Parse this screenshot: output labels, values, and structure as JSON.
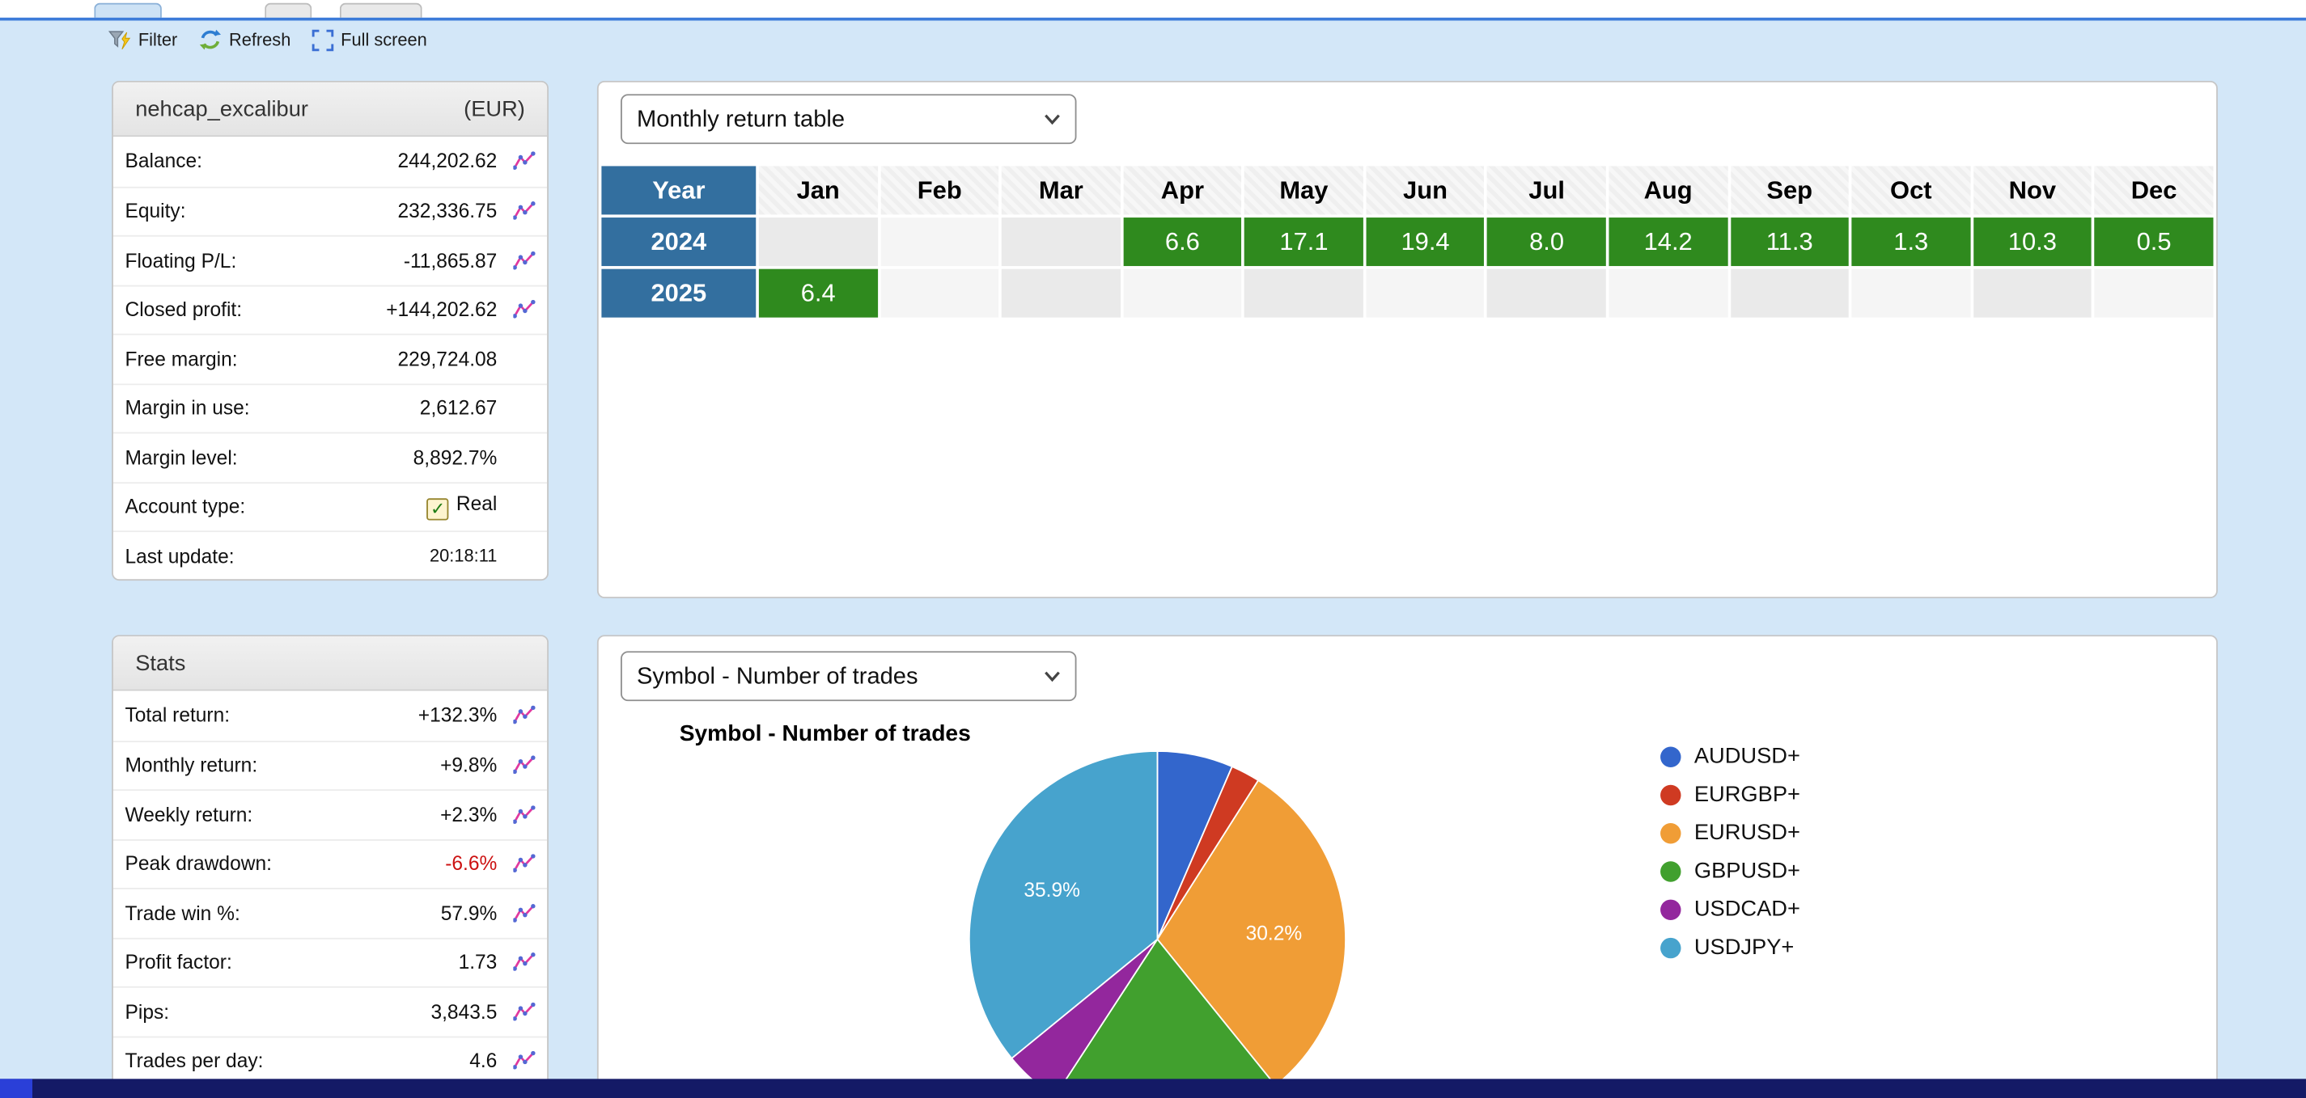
{
  "toolbar": {
    "filter": "Filter",
    "refresh": "Refresh",
    "fullscreen": "Full screen"
  },
  "account": {
    "title": "nehcap_excalibur",
    "currency": "(EUR)",
    "rows": [
      {
        "label": "Balance:",
        "value": "244,202.62",
        "chart": true
      },
      {
        "label": "Equity:",
        "value": "232,336.75",
        "chart": true
      },
      {
        "label": "Floating P/L:",
        "value": "-11,865.87",
        "chart": true
      },
      {
        "label": "Closed profit:",
        "value": "+144,202.62",
        "chart": true
      },
      {
        "label": "Free margin:",
        "value": "229,724.08",
        "chart": false
      },
      {
        "label": "Margin in use:",
        "value": "2,612.67",
        "chart": false
      },
      {
        "label": "Margin level:",
        "value": "8,892.7%",
        "chart": false
      },
      {
        "label": "Account type:",
        "value": "Real",
        "chart": false,
        "checkbox": true
      },
      {
        "label": "Last update:",
        "value": "20:18:11",
        "chart": false,
        "small": true
      }
    ]
  },
  "stats": {
    "title": "Stats",
    "rows": [
      {
        "label": "Total return:",
        "value": "+132.3%",
        "chart": true
      },
      {
        "label": "Monthly return:",
        "value": "+9.8%",
        "chart": true
      },
      {
        "label": "Weekly return:",
        "value": "+2.3%",
        "chart": true
      },
      {
        "label": "Peak drawdown:",
        "value": "-6.6%",
        "chart": true,
        "negative": true
      },
      {
        "label": "Trade win %:",
        "value": "57.9%",
        "chart": true
      },
      {
        "label": "Profit factor:",
        "value": "1.73",
        "chart": true
      },
      {
        "label": "Pips:",
        "value": "3,843.5",
        "chart": true
      },
      {
        "label": "Trades per day:",
        "value": "4.6",
        "chart": true
      }
    ]
  },
  "monthly_panel": {
    "select_value": "Monthly return table"
  },
  "symbol_panel": {
    "select_value": "Symbol - Number of trades"
  },
  "chart_data": [
    {
      "type": "table",
      "title": "Monthly return table",
      "columns": [
        "Year",
        "Jan",
        "Feb",
        "Mar",
        "Apr",
        "May",
        "Jun",
        "Jul",
        "Aug",
        "Sep",
        "Oct",
        "Nov",
        "Dec"
      ],
      "rows": [
        {
          "year": "2024",
          "values": [
            null,
            null,
            null,
            "6.6",
            "17.1",
            "19.4",
            "8.0",
            "14.2",
            "11.3",
            "1.3",
            "10.3",
            "0.5"
          ]
        },
        {
          "year": "2025",
          "values": [
            "6.4",
            null,
            null,
            null,
            null,
            null,
            null,
            null,
            null,
            null,
            null,
            null
          ]
        }
      ],
      "positive_color": "#2f8a1e",
      "year_color": "#336f9f"
    },
    {
      "type": "pie",
      "title": "Symbol - Number of trades",
      "legend_position": "right",
      "slices": [
        {
          "label": "AUDUSD+",
          "value": 6.5,
          "color": "#3366cc",
          "pct_label": ""
        },
        {
          "label": "EURGBP+",
          "value": 2.5,
          "color": "#cf3a22",
          "pct_label": ""
        },
        {
          "label": "EURUSD+",
          "value": 30.2,
          "color": "#f09d36",
          "pct_label": "30.2%"
        },
        {
          "label": "GBPUSD+",
          "value": 20.0,
          "color": "#41a02e",
          "pct_label": ""
        },
        {
          "label": "USDCAD+",
          "value": 4.9,
          "color": "#93279d",
          "pct_label": ""
        },
        {
          "label": "USDJPY+",
          "value": 35.9,
          "color": "#47a3cd",
          "pct_label": "35.9%"
        }
      ]
    }
  ]
}
